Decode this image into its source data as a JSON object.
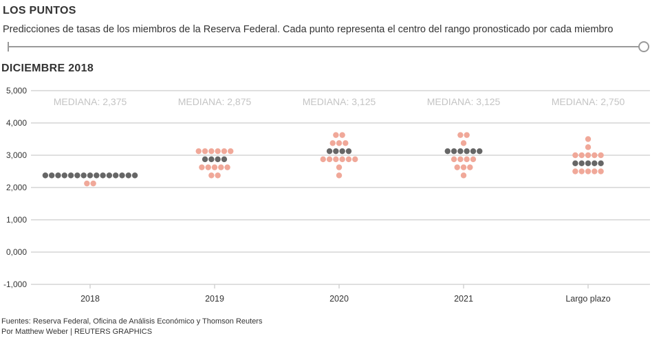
{
  "header": {
    "title": "LOS PUNTOS",
    "subtitle": "Predicciones de tasas de los miembros de la Reserva Federal. Cada punto representa el centro del rango pronosticado por cada miembro",
    "period": "DICIEMBRE 2018"
  },
  "footer": {
    "source": "Fuentes: Reserva Federal, Oficina de Análisis Económico y Thomson Reuters",
    "credit": "Por Matthew Weber | REUTERS GRAPHICS"
  },
  "chart_data": {
    "type": "scatter",
    "subtype": "dot-plot",
    "ylim": [
      -1,
      5
    ],
    "yticks": [
      -1,
      0,
      1,
      2,
      3,
      4,
      5
    ],
    "ytick_labels": [
      "-1,000",
      "0,000",
      "1,000",
      "2,000",
      "3,000",
      "4,000",
      "5,000"
    ],
    "categories": [
      "2018",
      "2019",
      "2020",
      "2021",
      "Largo plazo"
    ],
    "groups": [
      {
        "category": "2018",
        "median_label": "MEDIANA: 2,375",
        "median": 2.375,
        "dots": [
          {
            "value": 2.375,
            "count": 15
          },
          {
            "value": 2.125,
            "count": 2
          }
        ]
      },
      {
        "category": "2019",
        "median_label": "MEDIANA: 2,875",
        "median": 2.875,
        "dots": [
          {
            "value": 3.125,
            "count": 6
          },
          {
            "value": 2.875,
            "count": 4
          },
          {
            "value": 2.625,
            "count": 5
          },
          {
            "value": 2.375,
            "count": 2
          }
        ]
      },
      {
        "category": "2020",
        "median_label": "MEDIANA: 3,125",
        "median": 3.125,
        "dots": [
          {
            "value": 3.625,
            "count": 2
          },
          {
            "value": 3.375,
            "count": 3
          },
          {
            "value": 3.125,
            "count": 4
          },
          {
            "value": 2.875,
            "count": 6
          },
          {
            "value": 2.625,
            "count": 1
          },
          {
            "value": 2.375,
            "count": 1
          }
        ]
      },
      {
        "category": "2021",
        "median_label": "MEDIANA: 3,125",
        "median": 3.125,
        "dots": [
          {
            "value": 3.625,
            "count": 2
          },
          {
            "value": 3.375,
            "count": 1
          },
          {
            "value": 3.125,
            "count": 6
          },
          {
            "value": 2.875,
            "count": 4
          },
          {
            "value": 2.625,
            "count": 3
          },
          {
            "value": 2.375,
            "count": 1
          }
        ]
      },
      {
        "category": "Largo plazo",
        "median_label": "MEDIANA: 2,750",
        "median": 2.75,
        "dots": [
          {
            "value": 3.5,
            "count": 1
          },
          {
            "value": 3.25,
            "count": 1
          },
          {
            "value": 3.0,
            "count": 5
          },
          {
            "value": 2.75,
            "count": 5
          },
          {
            "value": 2.5,
            "count": 5
          }
        ]
      }
    ],
    "colors": {
      "median": "#666666",
      "other": "#f0a899",
      "grid": "#cccccc",
      "median_label": "#c4c4c4",
      "axis_text": "#333333"
    }
  }
}
